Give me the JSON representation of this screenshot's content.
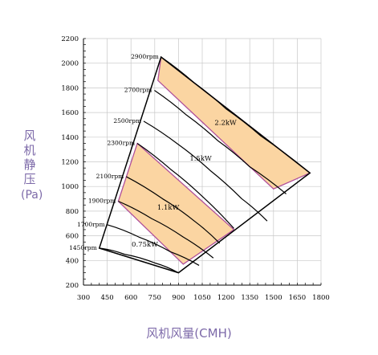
{
  "chart_data": {
    "type": "line",
    "title": "",
    "ylabel_chars": [
      "风",
      "机",
      "静",
      "压"
    ],
    "ylabel_unit": "(Pa)",
    "xlabel": "风机风量(CMH)",
    "xlim": [
      300,
      1800
    ],
    "ylim": [
      200,
      2200
    ],
    "xticks": [
      300,
      450,
      600,
      750,
      900,
      1050,
      1200,
      1350,
      1500,
      1650,
      1800
    ],
    "yticks": [
      200,
      400,
      600,
      800,
      1000,
      1200,
      1400,
      1600,
      1800,
      2000,
      2200
    ],
    "grid": true,
    "colors": {
      "grid": "#c8c8c8",
      "region_fill": "#fbd5a2",
      "power_boundary": "#b0509a",
      "line": "#000000",
      "title_text": "#7d6aa9"
    },
    "speed_curves": [
      {
        "label": "2900rpm",
        "points": [
          [
            790,
            2050
          ],
          [
            1000,
            1840
          ],
          [
            1200,
            1630
          ],
          [
            1420,
            1410
          ],
          [
            1730,
            1110
          ]
        ]
      },
      {
        "label": "2700rpm",
        "points": [
          [
            748,
            1780
          ],
          [
            950,
            1580
          ],
          [
            1150,
            1370
          ],
          [
            1350,
            1160
          ],
          [
            1580,
            940
          ]
        ]
      },
      {
        "label": "2500rpm",
        "points": [
          [
            680,
            1530
          ],
          [
            900,
            1340
          ],
          [
            1100,
            1130
          ],
          [
            1300,
            900
          ],
          [
            1460,
            720
          ]
        ]
      },
      {
        "label": "2300rpm",
        "points": [
          [
            640,
            1350
          ],
          [
            850,
            1140
          ],
          [
            1050,
            920
          ],
          [
            1250,
            660
          ]
        ]
      },
      {
        "label": "2100rpm",
        "points": [
          [
            570,
            1080
          ],
          [
            800,
            900
          ],
          [
            1000,
            720
          ],
          [
            1160,
            540
          ]
        ]
      },
      {
        "label": "1900rpm",
        "points": [
          [
            520,
            880
          ],
          [
            730,
            740
          ],
          [
            930,
            590
          ],
          [
            1120,
            420
          ]
        ]
      },
      {
        "label": "1700rpm",
        "points": [
          [
            450,
            690
          ],
          [
            650,
            590
          ],
          [
            850,
            470
          ],
          [
            1030,
            360
          ]
        ]
      },
      {
        "label": "1450rpm",
        "points": [
          [
            400,
            500
          ],
          [
            560,
            450
          ],
          [
            750,
            380
          ],
          [
            900,
            300
          ]
        ]
      }
    ],
    "outer_boundary_points": [
      [
        790,
        2050
      ],
      [
        1730,
        1110
      ],
      [
        900,
        300
      ],
      [
        400,
        500
      ]
    ],
    "power_regions": [
      {
        "label": "0.75kW",
        "points": [
          [
            400,
            500
          ],
          [
            520,
            880
          ],
          [
            930,
            370
          ],
          [
            900,
            300
          ]
        ]
      },
      {
        "label": "1.1kW",
        "points": [
          [
            520,
            880
          ],
          [
            640,
            1350
          ],
          [
            1250,
            650
          ],
          [
            930,
            370
          ]
        ]
      },
      {
        "label": "1.5kW",
        "points": [
          [
            640,
            1350
          ],
          [
            770,
            1860
          ],
          [
            1500,
            980
          ],
          [
            1250,
            650
          ]
        ]
      },
      {
        "label": "2.2kW",
        "points": [
          [
            770,
            1860
          ],
          [
            790,
            2050
          ],
          [
            1730,
            1110
          ],
          [
            1500,
            980
          ]
        ]
      }
    ],
    "shaded_regions": [
      "1.1kW",
      "2.2kW"
    ]
  }
}
